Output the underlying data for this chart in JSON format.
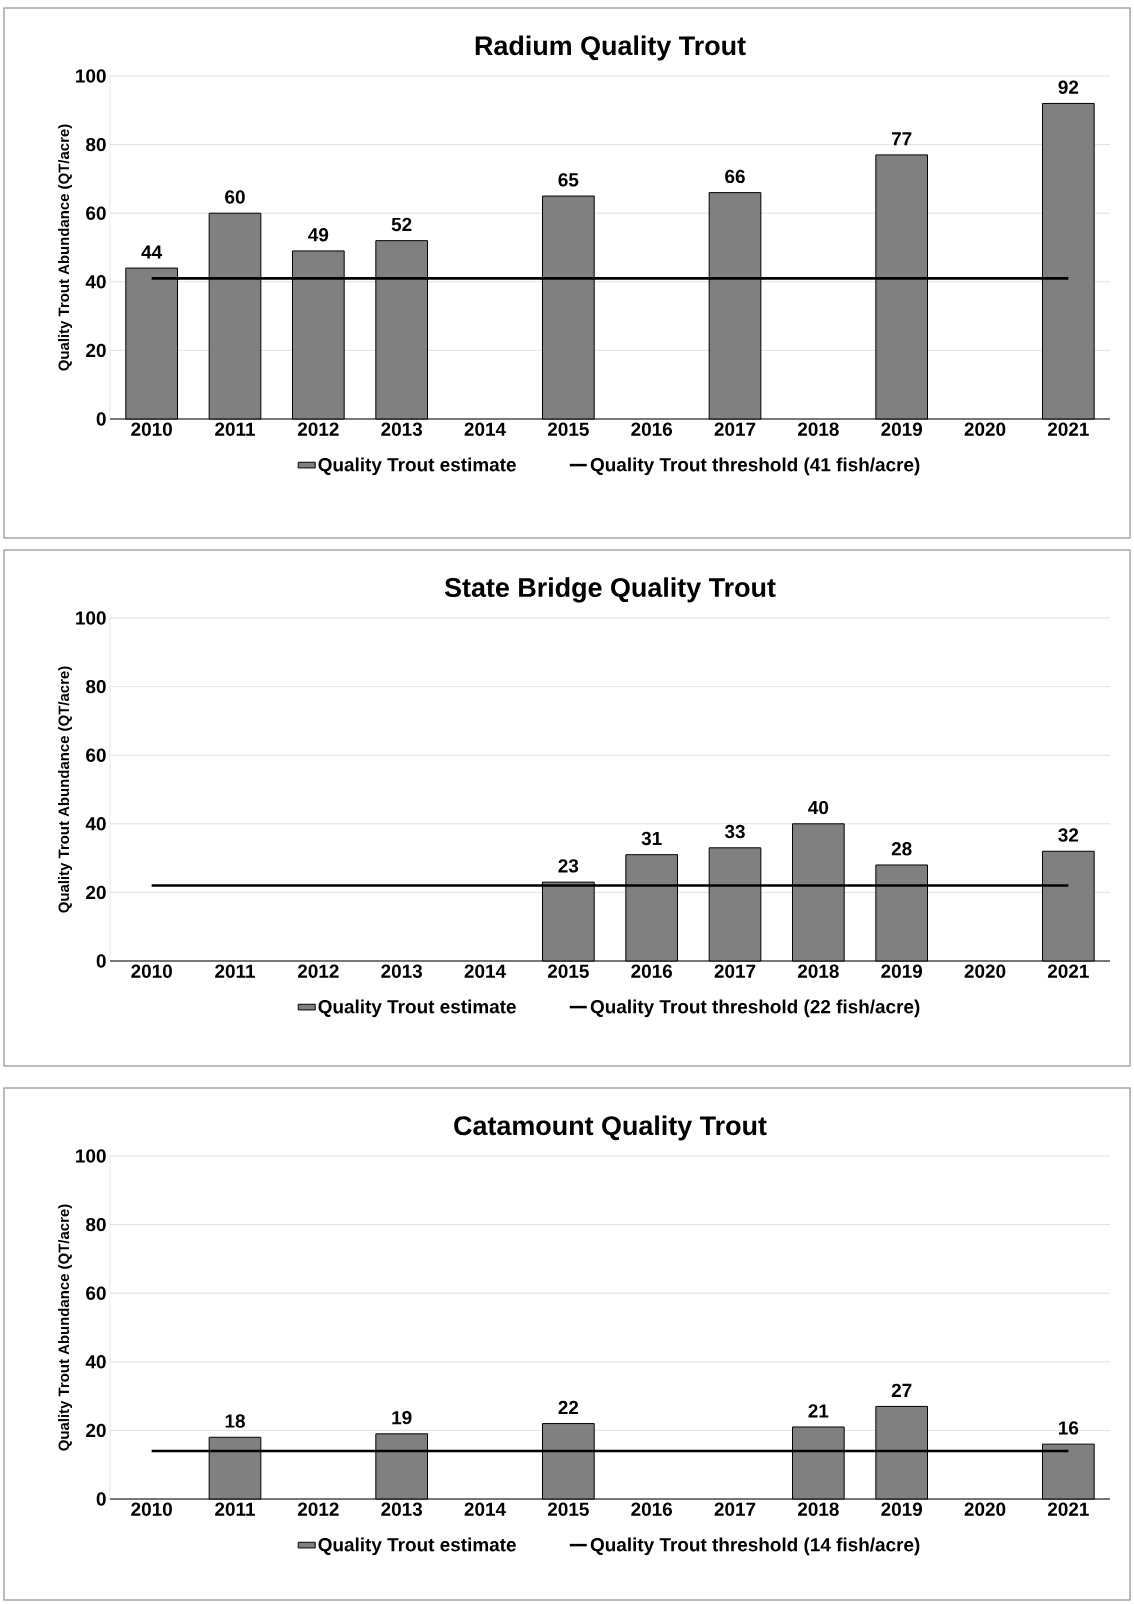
{
  "chart_data": [
    {
      "type": "bar",
      "title": "Radium Quality Trout",
      "ylabel": "Quality Trout Abundance (QT/acre)",
      "categories": [
        "2010",
        "2011",
        "2012",
        "2013",
        "2014",
        "2015",
        "2016",
        "2017",
        "2018",
        "2019",
        "2020",
        "2021"
      ],
      "series": [
        {
          "name": "Quality Trout estimate",
          "color": "#808080",
          "values": [
            44,
            60,
            49,
            52,
            null,
            65,
            null,
            66,
            null,
            77,
            null,
            92
          ],
          "value_labels": [
            "44",
            "60",
            "49",
            "52",
            null,
            "65",
            null,
            "66",
            null,
            "77",
            null,
            "92"
          ]
        },
        {
          "name": "Quality Trout threshold (41 fish/acre)",
          "type": "line",
          "color": "#000000",
          "values": [
            41,
            41,
            41,
            41,
            41,
            41,
            41,
            41,
            41,
            41,
            41,
            41
          ]
        }
      ],
      "ylim": [
        0,
        100
      ],
      "yticks": [
        0,
        20,
        40,
        60,
        80,
        100
      ],
      "grid": "y",
      "legend": "bottom"
    },
    {
      "type": "bar",
      "title": "State Bridge Quality Trout",
      "ylabel": "Quality Trout Abundance (QT/acre)",
      "categories": [
        "2010",
        "2011",
        "2012",
        "2013",
        "2014",
        "2015",
        "2016",
        "2017",
        "2018",
        "2019",
        "2020",
        "2021"
      ],
      "series": [
        {
          "name": "Quality Trout estimate",
          "color": "#808080",
          "values": [
            null,
            null,
            null,
            null,
            null,
            23,
            31,
            33,
            40,
            28,
            null,
            32
          ],
          "value_labels": [
            null,
            null,
            null,
            null,
            null,
            "23",
            "31",
            "33",
            "40",
            "28",
            null,
            "32"
          ]
        },
        {
          "name": "Quality Trout threshold (22 fish/acre)",
          "type": "line",
          "color": "#000000",
          "values": [
            22,
            22,
            22,
            22,
            22,
            22,
            22,
            22,
            22,
            22,
            22,
            22
          ]
        }
      ],
      "ylim": [
        0,
        100
      ],
      "yticks": [
        0,
        20,
        40,
        60,
        80,
        100
      ],
      "grid": "y",
      "legend": "bottom"
    },
    {
      "type": "bar",
      "title": "Catamount Quality Trout",
      "ylabel": "Quality Trout Abundance (QT/acre)",
      "categories": [
        "2010",
        "2011",
        "2012",
        "2013",
        "2014",
        "2015",
        "2016",
        "2017",
        "2018",
        "2019",
        "2020",
        "2021"
      ],
      "series": [
        {
          "name": "Quality Trout estimate",
          "color": "#808080",
          "values": [
            null,
            18,
            null,
            19,
            null,
            22,
            null,
            null,
            21,
            27,
            null,
            16
          ],
          "value_labels": [
            null,
            "18",
            null,
            "19",
            null,
            "22",
            null,
            null,
            "21",
            "27",
            null,
            "16"
          ]
        },
        {
          "name": "Quality Trout threshold (14 fish/acre)",
          "type": "line",
          "color": "#000000",
          "values": [
            14,
            14,
            14,
            14,
            14,
            14,
            14,
            14,
            14,
            14,
            14,
            14
          ]
        }
      ],
      "ylim": [
        0,
        100
      ],
      "yticks": [
        0,
        20,
        40,
        60,
        80,
        100
      ],
      "grid": "y",
      "legend": "bottom"
    }
  ]
}
